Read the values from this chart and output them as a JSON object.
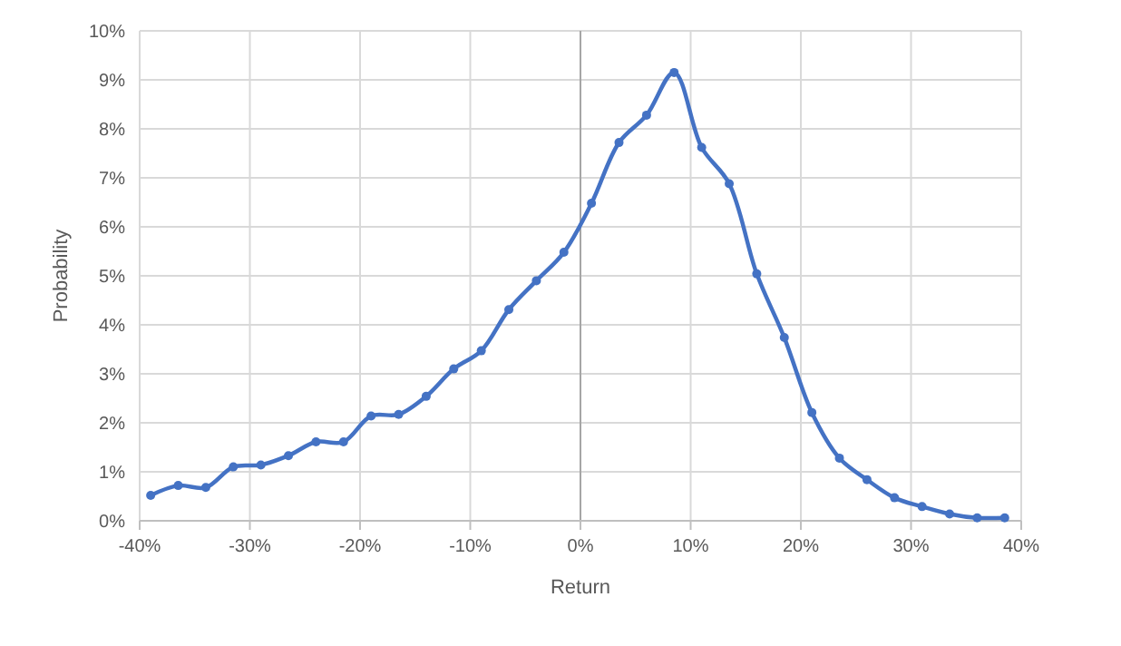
{
  "chart_data": {
    "type": "line",
    "xlabel": "Return",
    "ylabel": "Probability",
    "x": [
      -39,
      -36.5,
      -34,
      -31.5,
      -29,
      -26.5,
      -24,
      -21.5,
      -19,
      -16.5,
      -14,
      -11.5,
      -9,
      -6.5,
      -4,
      -1.5,
      1,
      3.5,
      6,
      8.5,
      11,
      13.5,
      16,
      18.5,
      21,
      23.5,
      26,
      28.5,
      31,
      33.5,
      36,
      38.5
    ],
    "series": [
      {
        "color": "#4472c4",
        "values": [
          0.52,
          0.72,
          0.68,
          1.1,
          1.14,
          1.33,
          1.61,
          1.61,
          2.14,
          2.17,
          2.54,
          3.1,
          3.47,
          4.31,
          4.9,
          5.48,
          6.48,
          7.72,
          8.28,
          9.15,
          7.62,
          6.88,
          5.04,
          3.74,
          2.21,
          1.28,
          0.84,
          0.47,
          0.29,
          0.14,
          0.06,
          0.06
        ]
      }
    ],
    "xlim": [
      -40,
      40
    ],
    "xticks": [
      {
        "value": -40,
        "label": "-40%"
      },
      {
        "value": -30,
        "label": "-30%"
      },
      {
        "value": -20,
        "label": "-20%"
      },
      {
        "value": -10,
        "label": "-10%"
      },
      {
        "value": 0,
        "label": "0%"
      },
      {
        "value": 10,
        "label": "10%"
      },
      {
        "value": 20,
        "label": "20%"
      },
      {
        "value": 30,
        "label": "30%"
      },
      {
        "value": 40,
        "label": "40%"
      }
    ],
    "ylim": [
      0,
      10
    ],
    "yticks": [
      {
        "value": 0,
        "label": "0%"
      },
      {
        "value": 1,
        "label": "1%"
      },
      {
        "value": 2,
        "label": "2%"
      },
      {
        "value": 3,
        "label": "3%"
      },
      {
        "value": 4,
        "label": "4%"
      },
      {
        "value": 5,
        "label": "5%"
      },
      {
        "value": 6,
        "label": "6%"
      },
      {
        "value": 7,
        "label": "7%"
      },
      {
        "value": 8,
        "label": "8%"
      },
      {
        "value": 9,
        "label": "9%"
      },
      {
        "value": 10,
        "label": "10%"
      }
    ],
    "grid": true,
    "marker": "circle",
    "line_style": "solid"
  }
}
